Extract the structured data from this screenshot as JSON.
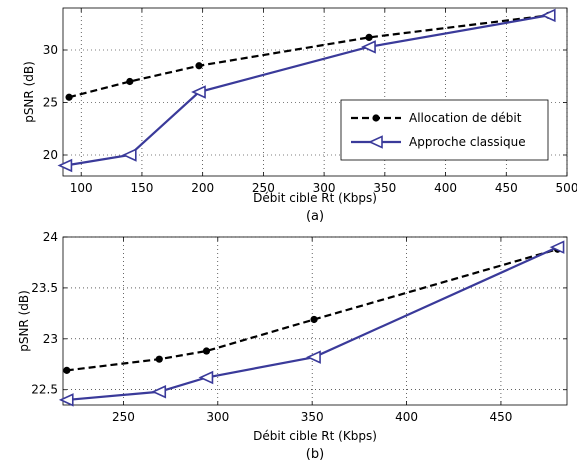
{
  "chart_data": [
    {
      "type": "line",
      "caption": "(a)",
      "xlabel": "Débit cible Rt (Kbps)",
      "ylabel": "pSNR (dB)",
      "xlim": [
        85,
        500
      ],
      "ylim": [
        18,
        34
      ],
      "xticks": [
        100,
        150,
        200,
        250,
        300,
        350,
        400,
        450,
        500
      ],
      "yticks": [
        20,
        25,
        30
      ],
      "grid": true,
      "legend_position": "lower-right",
      "series": [
        {
          "name": "Allocation de débit",
          "style": "dashed",
          "marker": "circle",
          "color": "#000000",
          "x": [
            90,
            140,
            197,
            337,
            485
          ],
          "y": [
            25.5,
            27.0,
            28.5,
            31.2,
            33.3
          ]
        },
        {
          "name": "Approche classique",
          "style": "solid",
          "marker": "left-triangle",
          "color": "#3a3a9a",
          "x": [
            87,
            140,
            197,
            337,
            485
          ],
          "y": [
            19.0,
            20.0,
            26.0,
            30.3,
            33.3
          ]
        }
      ]
    },
    {
      "type": "line",
      "caption": "(b)",
      "xlabel": "Débit cible Rt (Kbps)",
      "ylabel": "pSNR (dB)",
      "xlim": [
        218,
        485
      ],
      "ylim": [
        22.35,
        24
      ],
      "xticks": [
        250,
        300,
        350,
        400,
        450
      ],
      "yticks": [
        22.5,
        23,
        23.5,
        24
      ],
      "grid": true,
      "series": [
        {
          "name": "Allocation de débit",
          "style": "dashed",
          "marker": "circle",
          "color": "#000000",
          "x": [
            220,
            269,
            294,
            351,
            480
          ],
          "y": [
            22.69,
            22.8,
            22.88,
            23.19,
            23.88
          ]
        },
        {
          "name": "Approche classique",
          "style": "solid",
          "marker": "left-triangle",
          "color": "#3a3a9a",
          "x": [
            220,
            269,
            294,
            351,
            480
          ],
          "y": [
            22.4,
            22.48,
            22.62,
            22.82,
            23.9
          ]
        }
      ]
    }
  ]
}
